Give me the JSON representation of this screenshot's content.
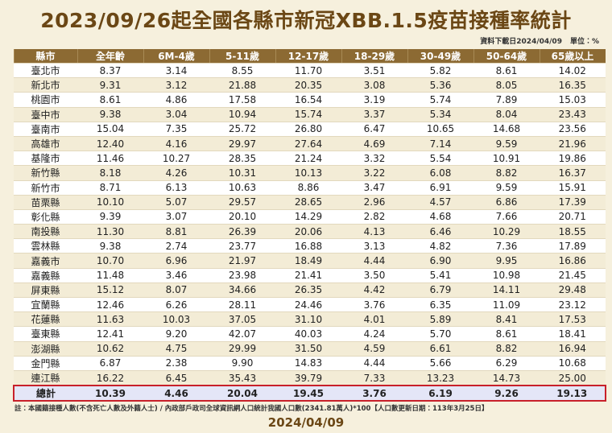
{
  "header": {
    "title": "2023/09/26起全國各縣市新冠XBB.1.5疫苗接種率統計",
    "download": "資料下載日2024/04/09",
    "unit": "單位：%"
  },
  "table": {
    "columns": [
      "縣市",
      "全年齡",
      "6M-4歲",
      "5-11歲",
      "12-17歲",
      "18-29歲",
      "30-49歲",
      "50-64歲",
      "65歲以上"
    ],
    "rows": [
      [
        "臺北市",
        "8.37",
        "3.14",
        "8.55",
        "11.70",
        "3.51",
        "5.82",
        "8.61",
        "14.02"
      ],
      [
        "新北市",
        "9.31",
        "3.12",
        "21.88",
        "20.35",
        "3.08",
        "5.36",
        "8.05",
        "16.35"
      ],
      [
        "桃園市",
        "8.61",
        "4.86",
        "17.58",
        "16.54",
        "3.19",
        "5.74",
        "7.89",
        "15.03"
      ],
      [
        "臺中市",
        "9.38",
        "3.04",
        "10.94",
        "15.74",
        "3.37",
        "5.34",
        "8.04",
        "23.43"
      ],
      [
        "臺南市",
        "15.04",
        "7.35",
        "25.72",
        "26.80",
        "6.47",
        "10.65",
        "14.68",
        "23.56"
      ],
      [
        "高雄市",
        "12.40",
        "4.16",
        "29.97",
        "27.64",
        "4.69",
        "7.14",
        "9.59",
        "21.96"
      ],
      [
        "基隆市",
        "11.46",
        "10.27",
        "28.35",
        "21.24",
        "3.32",
        "5.54",
        "10.91",
        "19.86"
      ],
      [
        "新竹縣",
        "8.18",
        "4.26",
        "10.31",
        "10.13",
        "3.22",
        "6.08",
        "8.82",
        "16.37"
      ],
      [
        "新竹市",
        "8.71",
        "6.13",
        "10.63",
        "8.86",
        "3.47",
        "6.91",
        "9.59",
        "15.91"
      ],
      [
        "苗栗縣",
        "10.10",
        "5.07",
        "29.57",
        "28.65",
        "2.96",
        "4.57",
        "6.86",
        "17.39"
      ],
      [
        "彰化縣",
        "9.39",
        "3.07",
        "20.10",
        "14.29",
        "2.82",
        "4.68",
        "7.66",
        "20.71"
      ],
      [
        "南投縣",
        "11.30",
        "8.81",
        "26.39",
        "20.06",
        "4.13",
        "6.46",
        "10.29",
        "18.55"
      ],
      [
        "雲林縣",
        "9.38",
        "2.74",
        "23.77",
        "16.88",
        "3.13",
        "4.82",
        "7.36",
        "17.89"
      ],
      [
        "嘉義市",
        "10.70",
        "6.96",
        "21.97",
        "18.49",
        "4.44",
        "6.90",
        "9.95",
        "16.86"
      ],
      [
        "嘉義縣",
        "11.48",
        "3.46",
        "23.98",
        "21.41",
        "3.50",
        "5.41",
        "10.98",
        "21.45"
      ],
      [
        "屏東縣",
        "15.12",
        "8.07",
        "34.66",
        "26.35",
        "4.42",
        "6.79",
        "14.11",
        "29.48"
      ],
      [
        "宜蘭縣",
        "12.46",
        "6.26",
        "28.11",
        "24.46",
        "3.76",
        "6.35",
        "11.09",
        "23.12"
      ],
      [
        "花蓮縣",
        "11.63",
        "10.03",
        "37.05",
        "31.10",
        "4.01",
        "5.89",
        "8.41",
        "17.53"
      ],
      [
        "臺東縣",
        "12.41",
        "9.20",
        "42.07",
        "40.03",
        "4.24",
        "5.70",
        "8.61",
        "18.41"
      ],
      [
        "澎湖縣",
        "10.62",
        "4.75",
        "29.99",
        "31.50",
        "4.59",
        "6.61",
        "8.82",
        "16.94"
      ],
      [
        "金門縣",
        "6.87",
        "2.38",
        "9.90",
        "14.83",
        "4.44",
        "5.66",
        "6.29",
        "10.68"
      ],
      [
        "連江縣",
        "16.22",
        "6.45",
        "35.43",
        "39.79",
        "7.33",
        "13.23",
        "14.73",
        "25.00"
      ]
    ],
    "total": [
      "總計",
      "10.39",
      "4.46",
      "20.04",
      "19.45",
      "3.76",
      "6.19",
      "9.26",
      "19.13"
    ]
  },
  "footer": {
    "note": "註：本國籍接種人數(不含死亡人數及外籍人士) / 內政部戶政司全球資訊網人口統計我國人口數(2341.81萬人)*100【人口數更新日期：113年3月25日】",
    "date": "2024/04/09"
  }
}
